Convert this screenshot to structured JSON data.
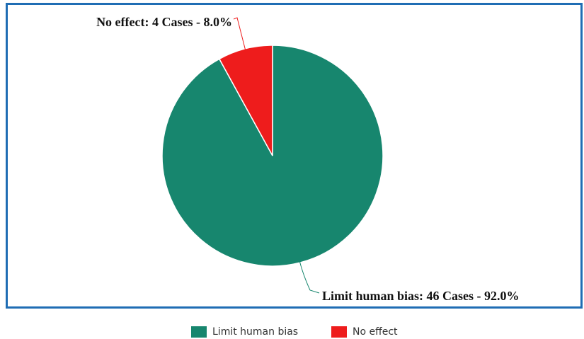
{
  "chart_data": {
    "type": "pie",
    "categories": [
      "Limit human bias",
      "No effect"
    ],
    "values": [
      46,
      4
    ],
    "value_labels": [
      "Limit human bias: 46 Cases - 92.0%",
      "No effect: 4 Cases - 8.0%"
    ],
    "colors": [
      "#17866e",
      "#ee1c1c"
    ],
    "legend": "bottom"
  }
}
